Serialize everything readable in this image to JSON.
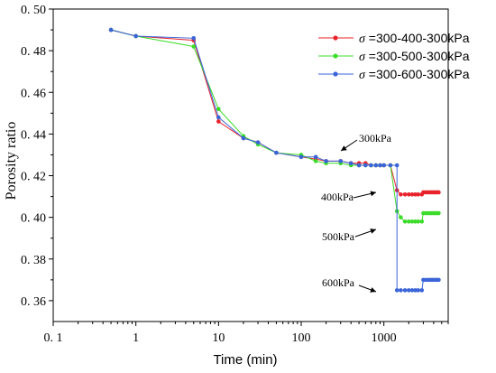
{
  "chart_data": {
    "type": "line",
    "xscale": "log",
    "xlabel": "Time (min)",
    "ylabel": "Porosity ratio",
    "xlim": [
      0.1,
      6000
    ],
    "ylim": [
      0.35,
      0.5
    ],
    "x_ticks": [
      0.1,
      1,
      10,
      100,
      1000
    ],
    "x_tick_labels": [
      "0. 1",
      "1",
      "10",
      "100",
      "1000"
    ],
    "y_ticks": [
      0.36,
      0.38,
      0.4,
      0.42,
      0.44,
      0.46,
      0.48,
      0.5
    ],
    "y_tick_labels": [
      "0. 36",
      "0. 38",
      "0. 40",
      "0. 42",
      "0. 44",
      "0. 46",
      "0. 48",
      "0. 50"
    ],
    "legend_placement": "top-right",
    "series": [
      {
        "name_symbol": "σ",
        "name_rest": " =300-400-300kPa",
        "color": "#e8232b",
        "x": [
          0.5,
          1,
          5,
          10,
          20,
          30,
          50,
          100,
          150,
          200,
          300,
          400,
          500,
          600,
          700,
          800,
          900,
          1000,
          1200,
          1440,
          1600,
          1800,
          2000,
          2200,
          2400,
          2600,
          2880,
          3000,
          3200,
          3400,
          3600,
          3800,
          4000,
          4200,
          4400,
          4600
        ],
        "y": [
          0.49,
          0.487,
          0.485,
          0.446,
          0.438,
          0.436,
          0.431,
          0.429,
          0.428,
          0.427,
          0.427,
          0.426,
          0.426,
          0.426,
          0.425,
          0.425,
          0.425,
          0.425,
          0.425,
          0.413,
          0.411,
          0.411,
          0.411,
          0.411,
          0.411,
          0.411,
          0.411,
          0.412,
          0.412,
          0.412,
          0.412,
          0.412,
          0.412,
          0.412,
          0.412,
          0.412
        ]
      },
      {
        "name_symbol": "σ",
        "name_rest": " =300-500-300kPa",
        "color": "#3ddc2a",
        "x": [
          0.5,
          1,
          5,
          10,
          20,
          30,
          50,
          100,
          150,
          200,
          300,
          400,
          500,
          600,
          700,
          800,
          900,
          1000,
          1200,
          1440,
          1600,
          1800,
          2000,
          2200,
          2400,
          2600,
          2880,
          3000,
          3200,
          3400,
          3600,
          3800,
          4000,
          4200,
          4400,
          4600
        ],
        "y": [
          0.49,
          0.487,
          0.482,
          0.452,
          0.439,
          0.435,
          0.431,
          0.43,
          0.427,
          0.426,
          0.426,
          0.425,
          0.425,
          0.425,
          0.425,
          0.425,
          0.425,
          0.425,
          0.425,
          0.403,
          0.4,
          0.398,
          0.398,
          0.398,
          0.398,
          0.398,
          0.398,
          0.402,
          0.402,
          0.402,
          0.402,
          0.402,
          0.402,
          0.402,
          0.402,
          0.402
        ]
      },
      {
        "name_symbol": "σ",
        "name_rest": " =300-600-300kPa",
        "color": "#3a64d8",
        "x": [
          0.5,
          1,
          5,
          10,
          20,
          30,
          50,
          100,
          150,
          200,
          300,
          400,
          500,
          600,
          700,
          800,
          900,
          1000,
          1200,
          1440,
          1440,
          1600,
          1800,
          2000,
          2200,
          2400,
          2600,
          2880,
          3000,
          3200,
          3400,
          3600,
          3800,
          4000,
          4200,
          4400,
          4600
        ],
        "y": [
          0.49,
          0.487,
          0.486,
          0.448,
          0.438,
          0.436,
          0.431,
          0.429,
          0.429,
          0.427,
          0.427,
          0.426,
          0.425,
          0.425,
          0.425,
          0.425,
          0.425,
          0.425,
          0.425,
          0.425,
          0.365,
          0.365,
          0.365,
          0.365,
          0.365,
          0.365,
          0.365,
          0.365,
          0.37,
          0.37,
          0.37,
          0.37,
          0.37,
          0.37,
          0.37,
          0.37,
          0.37
        ]
      }
    ],
    "annotations": [
      {
        "text": "300kPa"
      },
      {
        "text": "400kPa"
      },
      {
        "text": "500kPa"
      },
      {
        "text": "600kPa"
      }
    ]
  }
}
